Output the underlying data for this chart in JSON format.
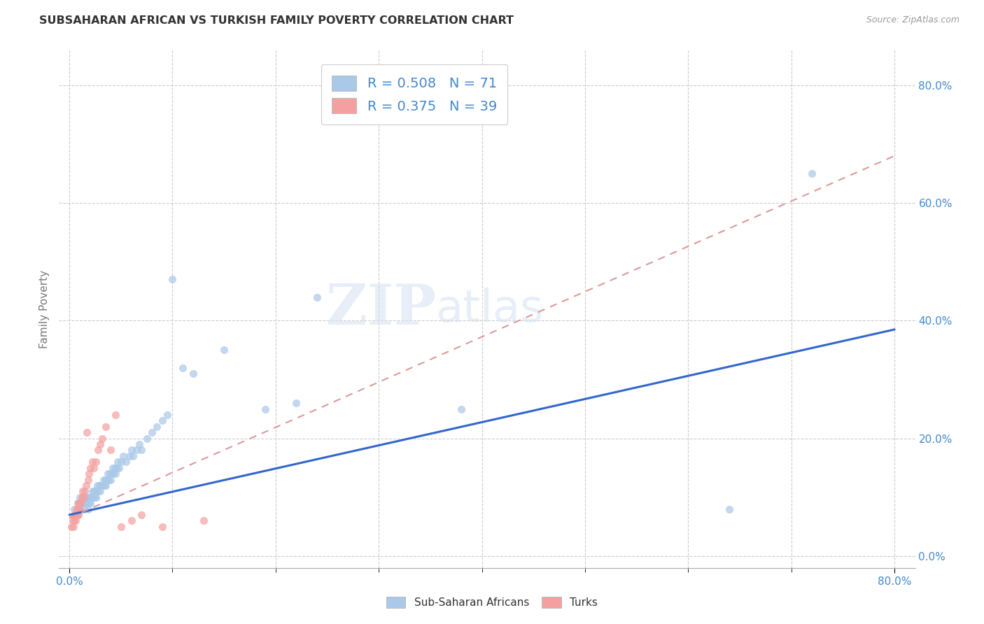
{
  "title": "SUBSAHARAN AFRICAN VS TURKISH FAMILY POVERTY CORRELATION CHART",
  "source": "Source: ZipAtlas.com",
  "ylabel": "Family Poverty",
  "ytick_labels": [
    "0.0%",
    "20.0%",
    "40.0%",
    "60.0%",
    "80.0%"
  ],
  "ytick_vals": [
    0.0,
    0.2,
    0.4,
    0.6,
    0.8
  ],
  "xtick_minor_vals": [
    0.0,
    0.1,
    0.2,
    0.3,
    0.4,
    0.5,
    0.6,
    0.7,
    0.8
  ],
  "xlim": [
    -0.01,
    0.82
  ],
  "ylim": [
    -0.02,
    0.86
  ],
  "background_color": "#ffffff",
  "watermark_zip": "ZIP",
  "watermark_atlas": "atlas",
  "legend_text1": "R = 0.508   N = 71",
  "legend_text2": "R = 0.375   N = 39",
  "blue_color": "#aac8e8",
  "pink_color": "#f4a0a0",
  "trend_blue_color": "#3366cc",
  "trend_pink_color": "#dd9999",
  "grid_color": "#cccccc",
  "title_color": "#333333",
  "axis_label_color": "#4488cc",
  "ylabel_color": "#777777",
  "source_color": "#999999",
  "blue_scatter_x": [
    0.005,
    0.008,
    0.01,
    0.01,
    0.012,
    0.013,
    0.014,
    0.015,
    0.015,
    0.016,
    0.017,
    0.018,
    0.018,
    0.019,
    0.02,
    0.02,
    0.021,
    0.022,
    0.022,
    0.023,
    0.024,
    0.025,
    0.025,
    0.026,
    0.027,
    0.028,
    0.029,
    0.03,
    0.03,
    0.032,
    0.033,
    0.034,
    0.035,
    0.035,
    0.036,
    0.037,
    0.038,
    0.039,
    0.04,
    0.041,
    0.042,
    0.043,
    0.044,
    0.045,
    0.046,
    0.047,
    0.048,
    0.05,
    0.052,
    0.055,
    0.058,
    0.06,
    0.062,
    0.065,
    0.068,
    0.07,
    0.075,
    0.08,
    0.085,
    0.09,
    0.095,
    0.1,
    0.11,
    0.12,
    0.15,
    0.19,
    0.22,
    0.24,
    0.38,
    0.64,
    0.72
  ],
  "blue_scatter_y": [
    0.08,
    0.09,
    0.08,
    0.1,
    0.09,
    0.1,
    0.08,
    0.09,
    0.1,
    0.09,
    0.1,
    0.08,
    0.1,
    0.09,
    0.09,
    0.1,
    0.1,
    0.11,
    0.1,
    0.1,
    0.11,
    0.1,
    0.11,
    0.1,
    0.12,
    0.11,
    0.12,
    0.11,
    0.12,
    0.12,
    0.13,
    0.12,
    0.13,
    0.12,
    0.13,
    0.14,
    0.13,
    0.14,
    0.13,
    0.14,
    0.15,
    0.14,
    0.15,
    0.14,
    0.15,
    0.16,
    0.15,
    0.16,
    0.17,
    0.16,
    0.17,
    0.18,
    0.17,
    0.18,
    0.19,
    0.18,
    0.2,
    0.21,
    0.22,
    0.23,
    0.24,
    0.47,
    0.32,
    0.31,
    0.35,
    0.25,
    0.26,
    0.44,
    0.25,
    0.08,
    0.65
  ],
  "pink_scatter_x": [
    0.002,
    0.003,
    0.004,
    0.005,
    0.005,
    0.006,
    0.006,
    0.007,
    0.007,
    0.008,
    0.008,
    0.009,
    0.009,
    0.01,
    0.01,
    0.011,
    0.012,
    0.013,
    0.014,
    0.015,
    0.016,
    0.017,
    0.018,
    0.019,
    0.02,
    0.022,
    0.024,
    0.026,
    0.028,
    0.03,
    0.032,
    0.035,
    0.04,
    0.045,
    0.05,
    0.06,
    0.07,
    0.09,
    0.13
  ],
  "pink_scatter_y": [
    0.05,
    0.06,
    0.05,
    0.06,
    0.07,
    0.06,
    0.07,
    0.07,
    0.08,
    0.07,
    0.08,
    0.07,
    0.09,
    0.08,
    0.09,
    0.09,
    0.1,
    0.11,
    0.1,
    0.11,
    0.12,
    0.21,
    0.13,
    0.14,
    0.15,
    0.16,
    0.15,
    0.16,
    0.18,
    0.19,
    0.2,
    0.22,
    0.18,
    0.24,
    0.05,
    0.06,
    0.07,
    0.05,
    0.06
  ],
  "blue_trend_x0": 0.0,
  "blue_trend_y0": 0.07,
  "blue_trend_x1": 0.8,
  "blue_trend_y1": 0.385,
  "pink_trend_x0": 0.0,
  "pink_trend_y0": 0.065,
  "pink_trend_x1": 0.8,
  "pink_trend_y1": 0.68
}
